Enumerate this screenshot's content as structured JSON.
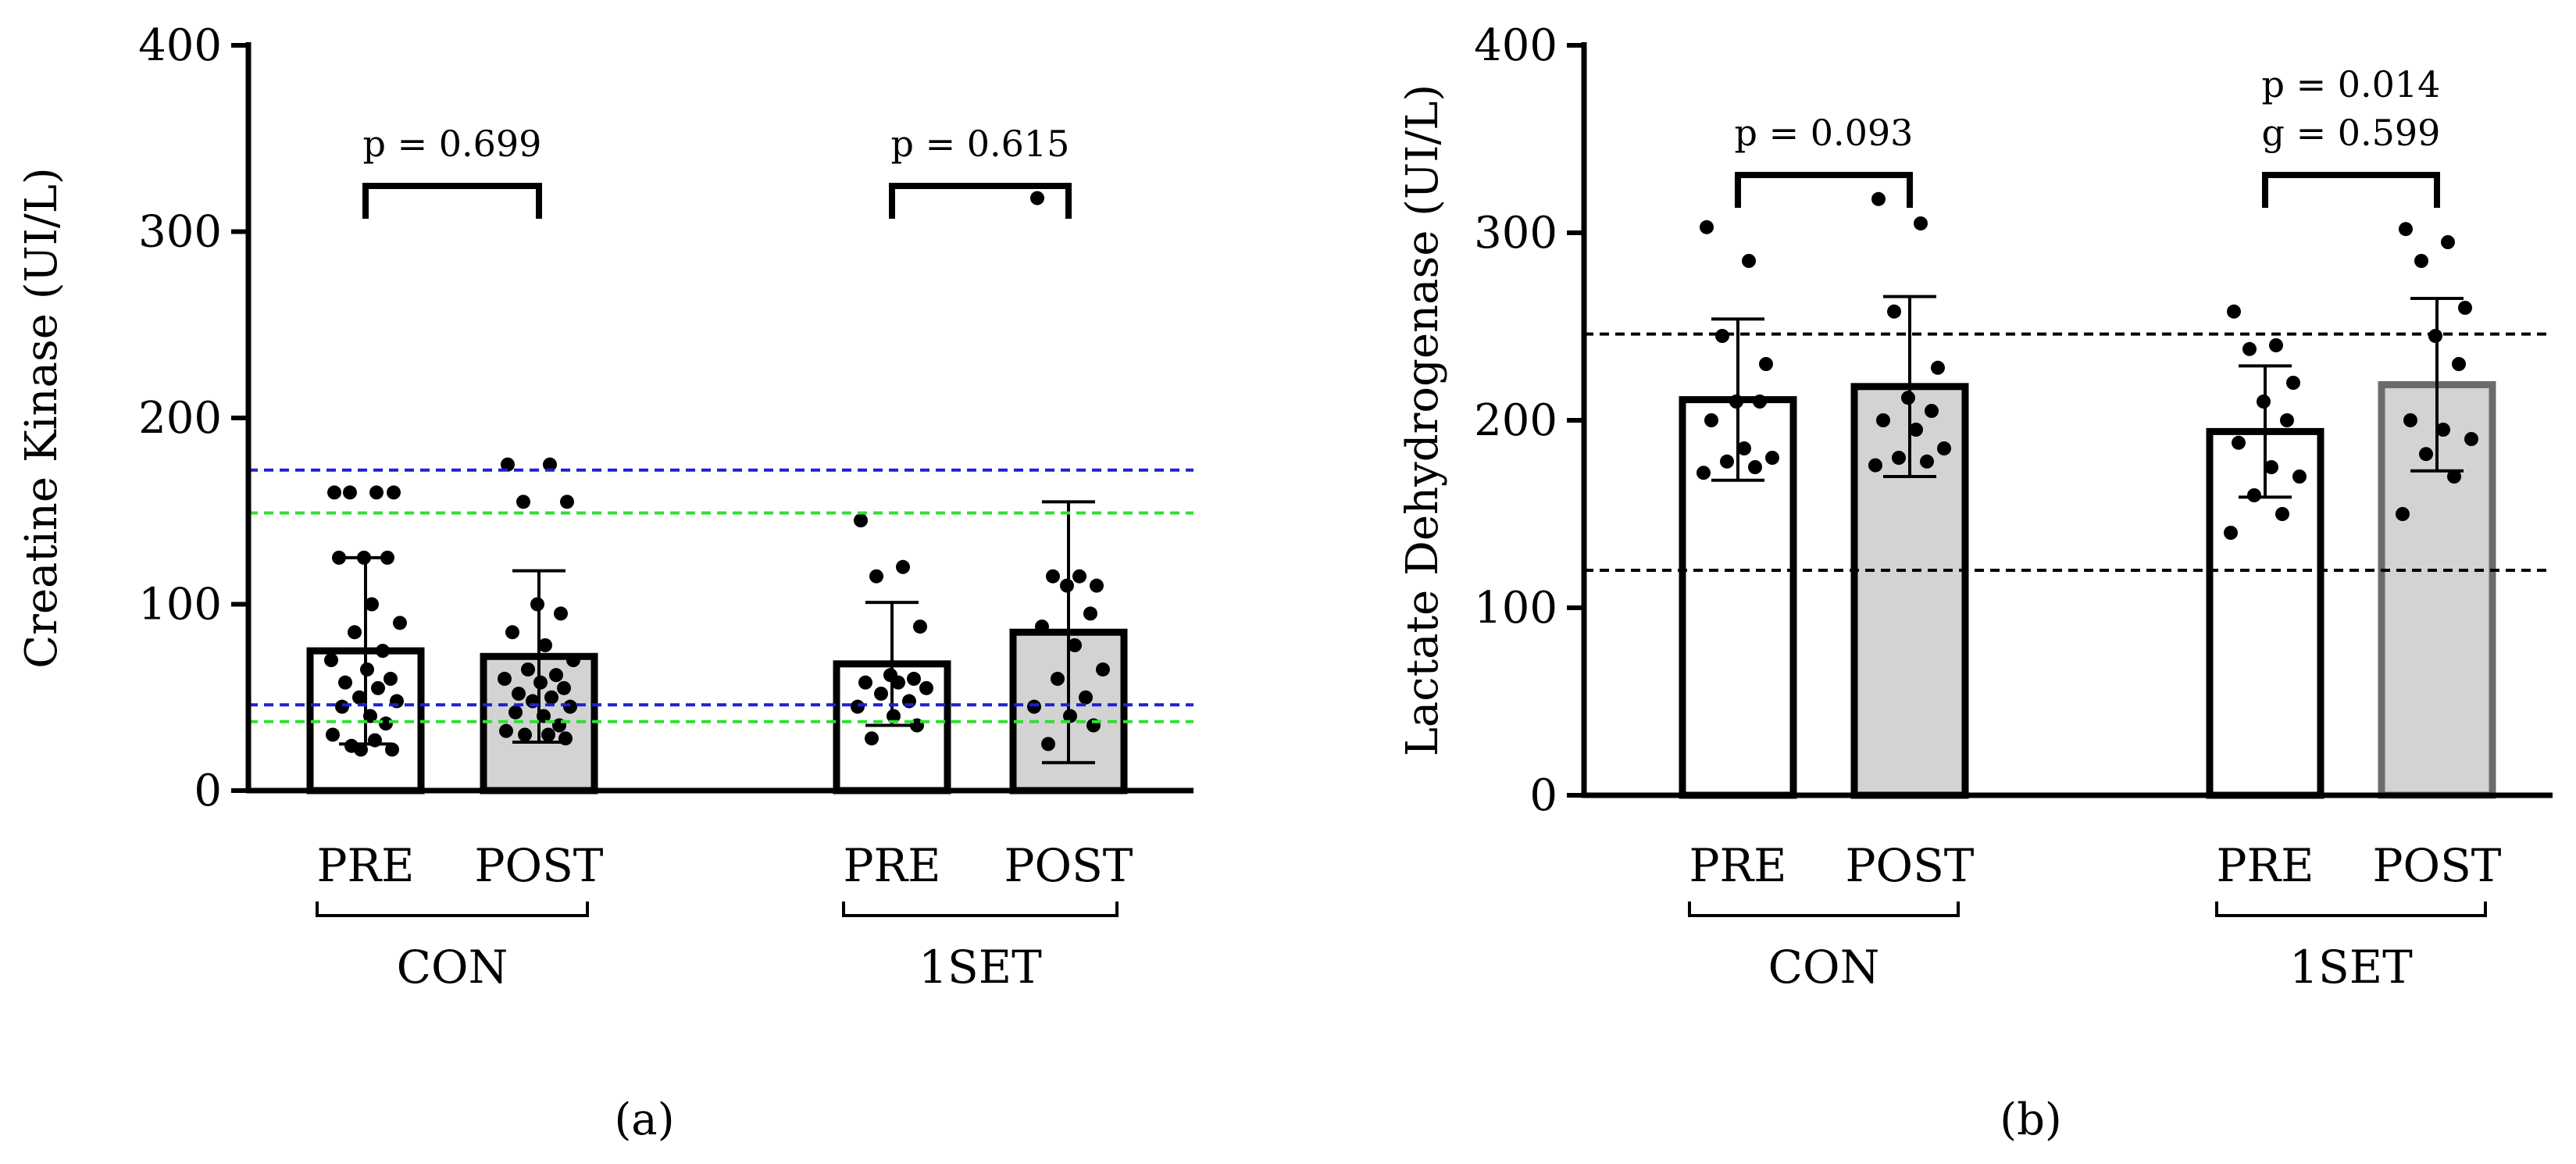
{
  "panel_labels": [
    "(a)",
    "(b)"
  ],
  "colors": {
    "axis": "#000000",
    "bar_pre_fill": "#ffffff",
    "bar_post_fill": "#d3d3d3",
    "bar_post_edge_b_1set": "#6b6b6b",
    "ref_blue": "#1f1fd6",
    "ref_green": "#33dd33",
    "ref_black": "#000000"
  },
  "chart_data": [
    {
      "type": "bar",
      "panel": "(a)",
      "ylabel": "Creatine Kinase (UI/L)",
      "ylim": [
        0,
        400
      ],
      "yticks": [
        0,
        100,
        200,
        300,
        400
      ],
      "grid": false,
      "categories": [
        "PRE",
        "POST",
        "PRE",
        "POST"
      ],
      "groups": [
        {
          "label": "CON",
          "categories": [
            "PRE",
            "POST"
          ]
        },
        {
          "label": "1SET",
          "categories": [
            "PRE",
            "POST"
          ]
        }
      ],
      "series": [
        {
          "values": [
            75,
            72,
            68,
            85
          ],
          "error_sd": [
            50,
            46,
            33,
            70
          ]
        }
      ],
      "points": [
        [
          160,
          160,
          160,
          160,
          125,
          125,
          125,
          100,
          90,
          85,
          75,
          70,
          65,
          60,
          58,
          55,
          50,
          48,
          45,
          40,
          36,
          30,
          27,
          24,
          22,
          22
        ],
        [
          175,
          175,
          155,
          155,
          100,
          95,
          85,
          78,
          70,
          65,
          62,
          60,
          58,
          55,
          52,
          50,
          48,
          45,
          42,
          40,
          35,
          32,
          30,
          30,
          28
        ],
        [
          145,
          120,
          115,
          88,
          62,
          60,
          58,
          58,
          55,
          52,
          48,
          45,
          40,
          35,
          28
        ],
        [
          318,
          115,
          115,
          110,
          110,
          95,
          88,
          78,
          65,
          60,
          50,
          45,
          40,
          35,
          25
        ]
      ],
      "reference_lines": [
        {
          "y": 172,
          "color": "blue"
        },
        {
          "y": 46,
          "color": "blue"
        },
        {
          "y": 149,
          "color": "green"
        },
        {
          "y": 37,
          "color": "green"
        }
      ],
      "annotations": [
        {
          "text": "p = 0.699",
          "between": [
            "CON PRE",
            "CON POST"
          ]
        },
        {
          "text": "p = 0.615",
          "between": [
            "1SET PRE",
            "1SET POST"
          ]
        }
      ]
    },
    {
      "type": "bar",
      "panel": "(b)",
      "ylabel": "Lactate Dehydrogenase (UI/L)",
      "ylim": [
        0,
        400
      ],
      "yticks": [
        0,
        100,
        200,
        300,
        400
      ],
      "grid": false,
      "categories": [
        "PRE",
        "POST",
        "PRE",
        "POST"
      ],
      "groups": [
        {
          "label": "CON",
          "categories": [
            "PRE",
            "POST"
          ]
        },
        {
          "label": "1SET",
          "categories": [
            "PRE",
            "POST"
          ]
        }
      ],
      "series": [
        {
          "values": [
            211,
            218,
            194,
            219
          ],
          "error_sd": [
            43,
            48,
            35,
            46
          ]
        }
      ],
      "points": [
        [
          303,
          285,
          245,
          230,
          210,
          210,
          200,
          185,
          180,
          178,
          175,
          172
        ],
        [
          318,
          305,
          258,
          228,
          212,
          205,
          200,
          195,
          185,
          180,
          178,
          176
        ],
        [
          258,
          240,
          238,
          220,
          210,
          200,
          188,
          175,
          170,
          160,
          150,
          140
        ],
        [
          302,
          295,
          285,
          260,
          245,
          230,
          200,
          195,
          190,
          182,
          170,
          150
        ]
      ],
      "reference_lines": [
        {
          "y": 246,
          "color": "black"
        },
        {
          "y": 120,
          "color": "black"
        }
      ],
      "annotations": [
        {
          "text": "p = 0.093",
          "between": [
            "CON PRE",
            "CON POST"
          ]
        },
        {
          "text": "p = 0.014",
          "between": [
            "1SET PRE",
            "1SET POST"
          ]
        },
        {
          "text": "g = 0.599",
          "between": [
            "1SET PRE",
            "1SET POST"
          ]
        }
      ]
    }
  ]
}
